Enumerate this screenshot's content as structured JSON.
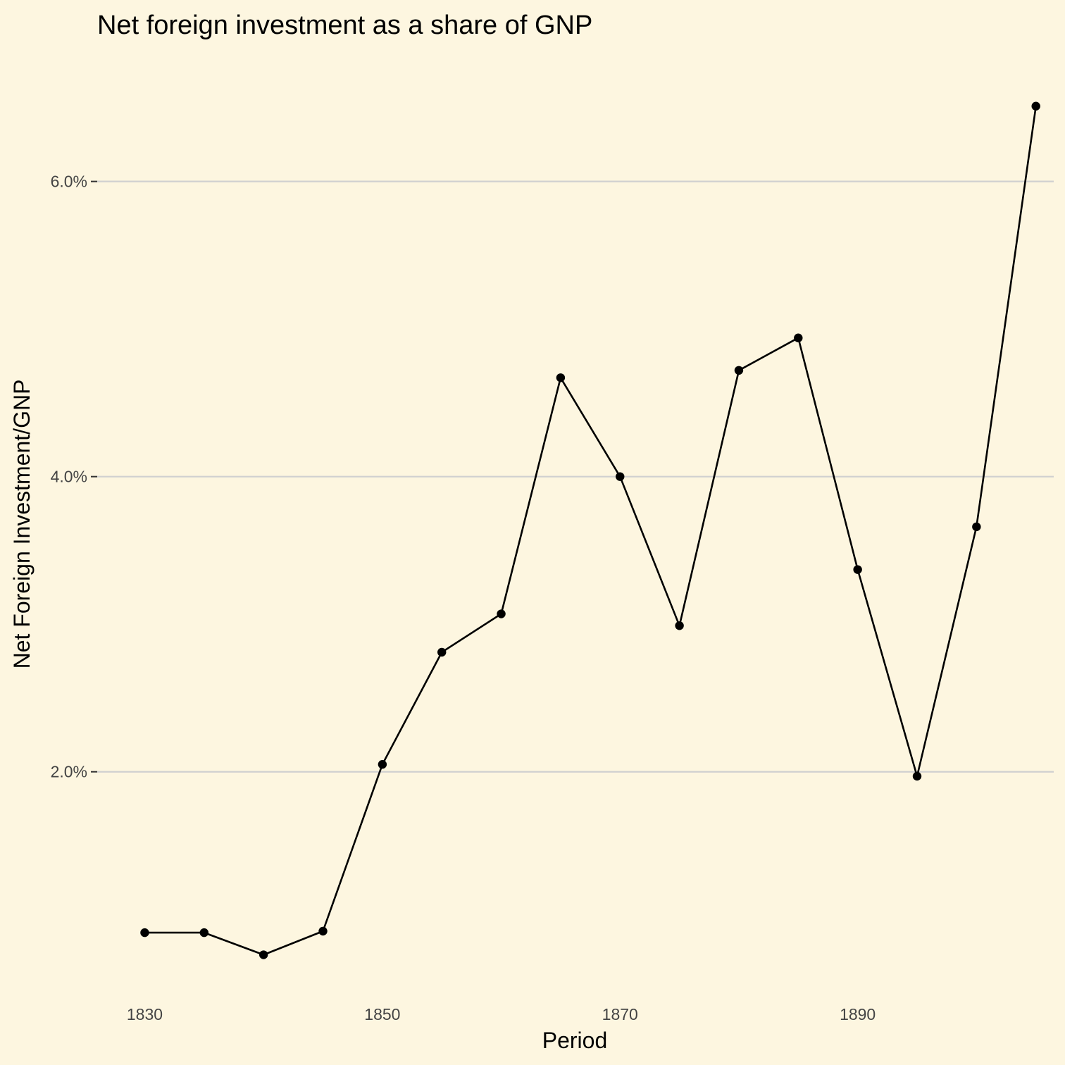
{
  "chart_data": {
    "type": "line",
    "title": "Net foreign investment as a share of GNP",
    "xlabel": "Period",
    "ylabel": "Net Foreign Investment/GNP",
    "x": [
      1830,
      1835,
      1840,
      1845,
      1850,
      1855,
      1860,
      1865,
      1870,
      1875,
      1880,
      1885,
      1890,
      1895,
      1900,
      1905
    ],
    "series": [
      {
        "values": [
          0.0091,
          0.0091,
          0.0076,
          0.0092,
          0.0205,
          0.0281,
          0.0307,
          0.0467,
          0.04,
          0.0299,
          0.0472,
          0.0494,
          0.0337,
          0.0197,
          0.0366,
          0.0651
        ]
      }
    ],
    "xlim": [
      1826,
      1906.5
    ],
    "ylim": [
      0.005,
      0.068
    ],
    "x_ticks": [
      1830,
      1850,
      1870,
      1890
    ],
    "x_tick_labels": [
      "1830",
      "1850",
      "1870",
      "1890"
    ],
    "y_ticks": [
      0.02,
      0.04,
      0.06
    ],
    "y_tick_labels": [
      "2.0%",
      "4.0%",
      "6.0%"
    ],
    "grid": "horizontal-major",
    "colors": {
      "background": "#fdf6e0",
      "line": "#000000",
      "grid": "#d0d0d0"
    }
  }
}
